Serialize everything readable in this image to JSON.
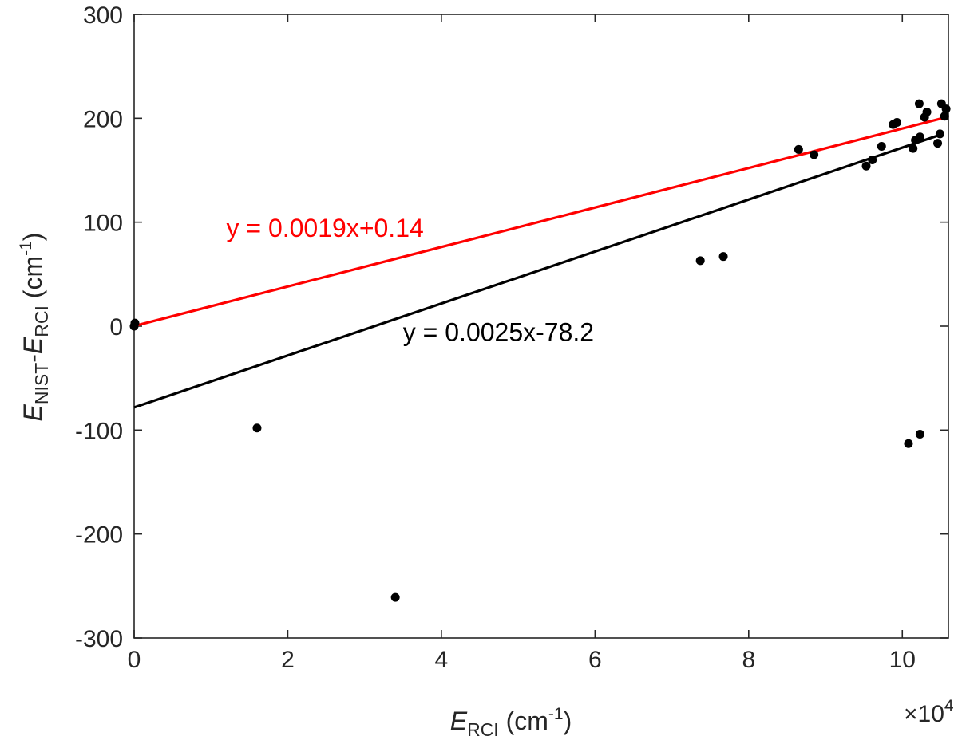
{
  "chart_data": {
    "type": "scatter",
    "x_multiplier_label": "×10",
    "x_multiplier_exp": "4",
    "x_multiplier": 10000,
    "xlabel": {
      "italic": "E",
      "sub": "RCI",
      "unit_open": " (cm",
      "unit_sup": "-1",
      "unit_close": ")"
    },
    "ylabel": {
      "italic1": "E",
      "sub1": "NIST",
      "dash": "-",
      "italic2": "E",
      "sub2": "RCI",
      "unit_open": " (cm",
      "unit_sup": "-1",
      "unit_close": ")"
    },
    "xlim": [
      0,
      106000
    ],
    "ylim": [
      -300,
      300
    ],
    "x_ticks": [
      0,
      20000,
      40000,
      60000,
      80000,
      100000
    ],
    "x_tick_labels": [
      "0",
      "2",
      "4",
      "6",
      "8",
      "10"
    ],
    "y_ticks": [
      -300,
      -200,
      -100,
      0,
      100,
      200,
      300
    ],
    "y_tick_labels": [
      "-300",
      "-200",
      "-100",
      "0",
      "100",
      "200",
      "300"
    ],
    "grid": false,
    "points": [
      {
        "x": 0,
        "y": 0
      },
      {
        "x": 100,
        "y": 3
      },
      {
        "x": 16000,
        "y": -98
      },
      {
        "x": 34000,
        "y": -261
      },
      {
        "x": 73700,
        "y": 63
      },
      {
        "x": 76700,
        "y": 67
      },
      {
        "x": 86500,
        "y": 170
      },
      {
        "x": 88500,
        "y": 165
      },
      {
        "x": 95300,
        "y": 154
      },
      {
        "x": 96100,
        "y": 160
      },
      {
        "x": 97300,
        "y": 173
      },
      {
        "x": 98800,
        "y": 194
      },
      {
        "x": 99300,
        "y": 196
      },
      {
        "x": 100800,
        "y": -113
      },
      {
        "x": 101400,
        "y": 171
      },
      {
        "x": 101700,
        "y": 179
      },
      {
        "x": 102300,
        "y": 182
      },
      {
        "x": 102300,
        "y": -104
      },
      {
        "x": 102200,
        "y": 214
      },
      {
        "x": 102900,
        "y": 201
      },
      {
        "x": 103200,
        "y": 206
      },
      {
        "x": 104600,
        "y": 176
      },
      {
        "x": 104900,
        "y": 185
      },
      {
        "x": 105100,
        "y": 214
      },
      {
        "x": 105500,
        "y": 202
      },
      {
        "x": 105700,
        "y": 209
      }
    ],
    "fits": [
      {
        "label": "y = 0.0019x+0.14",
        "slope": 0.0019,
        "intercept": 0.14,
        "color": "#ff0000",
        "x_range": [
          0,
          106000
        ],
        "label_x": 12000,
        "label_y": 95
      },
      {
        "label": "y = 0.0025x-78.2",
        "slope": 0.0025,
        "intercept": -78.2,
        "color": "#000000",
        "x_range": [
          0,
          104800
        ],
        "label_x": 35000,
        "label_y": -5
      }
    ],
    "marker_color": "#000000",
    "axis_color": "#262626"
  }
}
